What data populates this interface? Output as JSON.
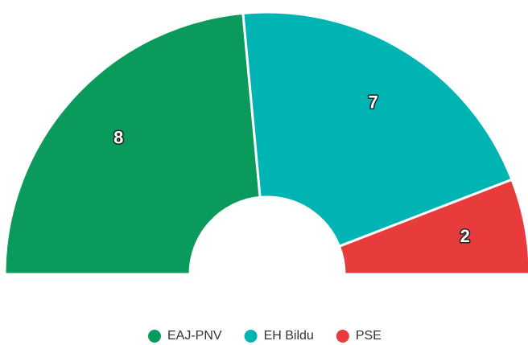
{
  "chart_data": {
    "type": "semi-pie",
    "categories": [
      "EAJ-PNV",
      "EH Bildu",
      "PSE"
    ],
    "values": [
      8,
      7,
      2
    ],
    "colors": [
      "#0a9a5c",
      "#00b4b4",
      "#e83c3c"
    ],
    "legend": "bottom"
  }
}
